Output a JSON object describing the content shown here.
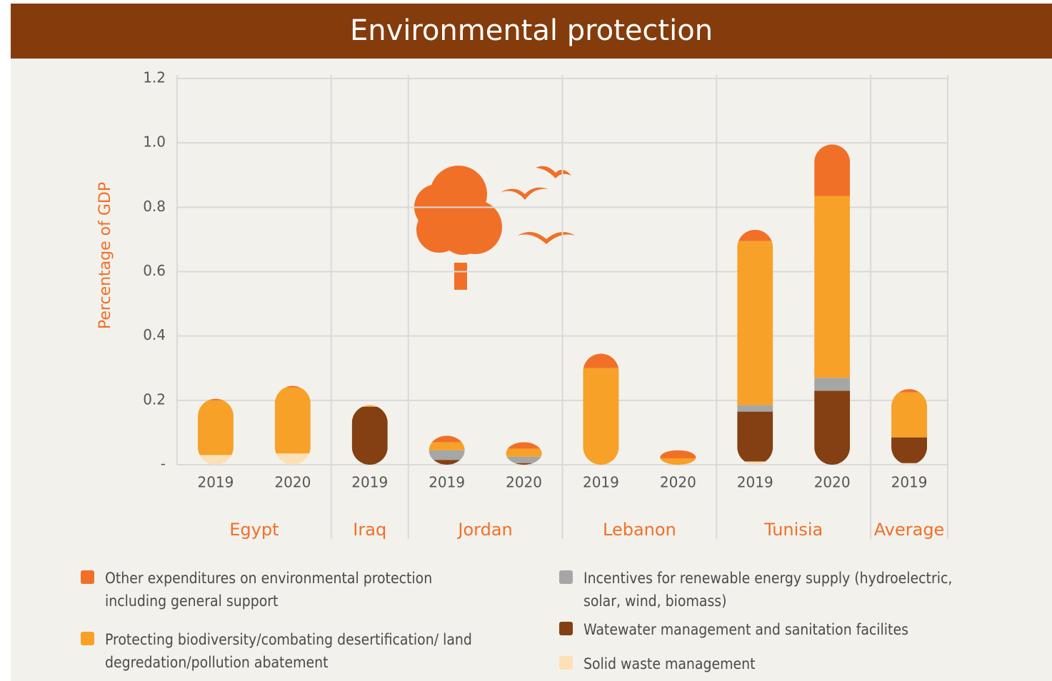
{
  "chart_data": {
    "type": "stacked-bar",
    "title": "Environmental protection",
    "y_label": "Percentage of GDP",
    "ylim": [
      0,
      1.2
    ],
    "yticks": [
      {
        "value": 0,
        "label": "-"
      },
      0.2,
      0.4,
      0.6,
      0.8,
      {
        "value": 1,
        "label": "1.0"
      },
      1.2
    ],
    "grid": true,
    "groups": [
      {
        "name": "Egypt",
        "categories": [
          "2019",
          "2020"
        ]
      },
      {
        "name": "Iraq",
        "categories": [
          "2019"
        ]
      },
      {
        "name": "Jordan",
        "categories": [
          "2019",
          "2020"
        ]
      },
      {
        "name": "Lebanon",
        "categories": [
          "2019",
          "2020"
        ]
      },
      {
        "name": "Tunisia",
        "categories": [
          "2019",
          "2020"
        ]
      },
      {
        "name": "Average",
        "categories": [
          "2019"
        ]
      }
    ],
    "series": [
      {
        "name": "Solid waste management",
        "color": "#fde0b8",
        "values": [
          0.03,
          0.035,
          0,
          0,
          0,
          0,
          0,
          0.01,
          0,
          0.005
        ]
      },
      {
        "name": "Watewater management and sanitation facilites",
        "color": "#843f12",
        "values": [
          0,
          0,
          0.18,
          0.015,
          0.005,
          0,
          0,
          0.155,
          0.23,
          0.08
        ]
      },
      {
        "name": "Incentives for renewable energy supply (hydroelectric, solar, wind, biomass)",
        "color": "#a6a6a6",
        "values": [
          0,
          0,
          0,
          0.03,
          0.02,
          0,
          0,
          0.02,
          0.04,
          0
        ]
      },
      {
        "name": "Protecting biodiversity/combating desertification/ land degredation/pollution abatement",
        "color": "#f7a129",
        "values": [
          0.17,
          0.205,
          0.005,
          0.025,
          0.025,
          0.3,
          0.02,
          0.51,
          0.565,
          0.14
        ]
      },
      {
        "name": "Other expenditures on environmental protection including general support",
        "color": "#f07028",
        "values": [
          0.005,
          0.005,
          0,
          0.02,
          0.02,
          0.045,
          0.025,
          0.035,
          0.16,
          0.01
        ]
      }
    ]
  }
}
